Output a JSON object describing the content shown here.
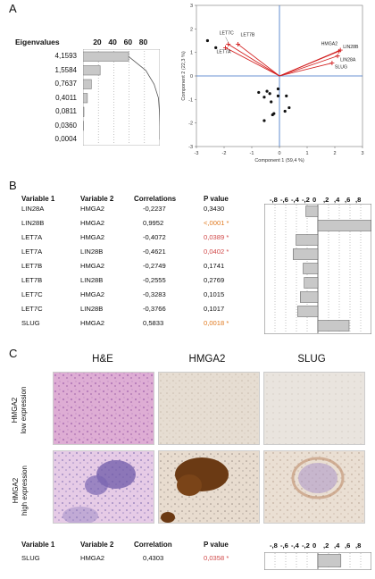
{
  "panels": {
    "a": "A",
    "b": "B",
    "c": "C"
  },
  "eigen": {
    "header": "Eigenvalues",
    "ticks": [
      "20",
      "40",
      "60",
      "80"
    ],
    "values": [
      "4,1593",
      "1,5584",
      "0,7637",
      "0,4011",
      "0,0811",
      "0,0360",
      "0,0004"
    ],
    "percent_bars": [
      59.4,
      22.3,
      10.9,
      5.7,
      1.2,
      0.5,
      0.0
    ],
    "cumulative": [
      59.4,
      81.7,
      92.6,
      98.3,
      99.5,
      100,
      100
    ]
  },
  "pca": {
    "xlabel": "Component 1 (59,4 %)",
    "ylabel": "Component 2 (22,3 %)",
    "xticks": [
      "-3",
      "-2",
      "-1",
      "0",
      "1",
      "2",
      "3"
    ],
    "yticks": [
      "3",
      "2",
      "1",
      "0",
      "-1",
      "-2",
      "-3"
    ],
    "xlim": [
      -3,
      3
    ],
    "ylim": [
      -3,
      3
    ],
    "loadings": [
      {
        "name": "LET7C",
        "x": -1.85,
        "y": 1.35
      },
      {
        "name": "LET7B",
        "x": -1.5,
        "y": 1.35
      },
      {
        "name": "LET7A",
        "x": -1.95,
        "y": 1.2
      },
      {
        "name": "HMGA2",
        "x": 2.15,
        "y": 1.05
      },
      {
        "name": "LIN28B",
        "x": 2.2,
        "y": 1.1
      },
      {
        "name": "LIN28A",
        "x": 2.1,
        "y": 0.85
      },
      {
        "name": "SLUG",
        "x": 1.9,
        "y": 0.55
      }
    ],
    "scores": [
      [
        -2.6,
        1.5
      ],
      [
        -2.3,
        1.2
      ],
      [
        -0.05,
        -0.55
      ],
      [
        -0.75,
        -0.7
      ],
      [
        -0.45,
        -0.65
      ],
      [
        -0.35,
        -0.75
      ],
      [
        -0.55,
        -0.9
      ],
      [
        -0.3,
        -1.1
      ],
      [
        -0.05,
        -0.85
      ],
      [
        0.25,
        -0.85
      ],
      [
        0.35,
        -1.35
      ],
      [
        0.2,
        -1.5
      ],
      [
        -0.2,
        -1.6
      ],
      [
        -0.25,
        -1.65
      ],
      [
        -0.55,
        -1.9
      ]
    ]
  },
  "table_b": {
    "headers": [
      "Variable 1",
      "Variable 2",
      "Correlations",
      "P value"
    ],
    "axis_ticks": [
      "-,8",
      "-,6",
      "-,4",
      "-,2",
      "0",
      ",2",
      ",4",
      ",6",
      ",8"
    ],
    "rows": [
      {
        "v1": "LIN28A",
        "v2": "HMGA2",
        "corr": "-0,2237",
        "p": "0,3430",
        "value": -0.2237,
        "sig": ""
      },
      {
        "v1": "LIN28B",
        "v2": "HMGA2",
        "corr": "0,9952",
        "p": "<,0001 *",
        "value": 0.9952,
        "sig": "orange"
      },
      {
        "v1": "LET7A",
        "v2": "HMGA2",
        "corr": "-0,4072",
        "p": "0,0389 *",
        "value": -0.4072,
        "sig": "red"
      },
      {
        "v1": "LET7A",
        "v2": "LIN28B",
        "corr": "-0,4621",
        "p": "0,0402 *",
        "value": -0.4621,
        "sig": "red"
      },
      {
        "v1": "LET7B",
        "v2": "HMGA2",
        "corr": "-0,2749",
        "p": "0,1741",
        "value": -0.2749,
        "sig": ""
      },
      {
        "v1": "LET7B",
        "v2": "LIN28B",
        "corr": "-0,2555",
        "p": "0,2769",
        "value": -0.2555,
        "sig": ""
      },
      {
        "v1": "LET7C",
        "v2": "HMGA2",
        "corr": "-0,3283",
        "p": "0,1015",
        "value": -0.3283,
        "sig": ""
      },
      {
        "v1": "LET7C",
        "v2": "LIN28B",
        "corr": "-0,3766",
        "p": "0,1017",
        "value": -0.3766,
        "sig": ""
      },
      {
        "v1": "SLUG",
        "v2": "HMGA2",
        "corr": "0,5833",
        "p": "0,0018 *",
        "value": 0.5833,
        "sig": "orange"
      }
    ]
  },
  "histology": {
    "columns": [
      "H&E",
      "HMGA2",
      "SLUG"
    ],
    "row_labels": [
      {
        "line1": "HMGA2",
        "line2": "low expression"
      },
      {
        "line1": "HMGA2",
        "line2": "high expression"
      }
    ]
  },
  "table_c": {
    "headers": [
      "Variable 1",
      "Variable 2",
      "Correlation",
      "P value"
    ],
    "axis_ticks": [
      "-,8",
      "-,6",
      "-,4",
      "-,2",
      "0",
      ",2",
      ",4",
      ",6",
      ",8"
    ],
    "rows": [
      {
        "v1": "SLUG",
        "v2": "HMGA2",
        "corr": "0,4303",
        "p": "0,0358 *",
        "value": 0.4303,
        "sig": "red"
      }
    ]
  },
  "chart_data": [
    {
      "type": "bar",
      "title": "Eigenvalues",
      "categories": [
        "4,1593",
        "1,5584",
        "0,7637",
        "0,4011",
        "0,0811",
        "0,0360",
        "0,0004"
      ],
      "values": [
        59.4,
        22.3,
        10.9,
        5.7,
        1.2,
        0.5,
        0.0
      ],
      "xlim": [
        0,
        100
      ]
    },
    {
      "type": "scatter",
      "xlabel": "Component 1 (59,4 %)",
      "ylabel": "Component 2 (22,3 %)",
      "xlim": [
        -3,
        3
      ],
      "ylim": [
        -3,
        3
      ]
    },
    {
      "type": "bar",
      "categories": [
        "LIN28A/HMGA2",
        "LIN28B/HMGA2",
        "LET7A/HMGA2",
        "LET7A/LIN28B",
        "LET7B/HMGA2",
        "LET7B/LIN28B",
        "LET7C/HMGA2",
        "LET7C/LIN28B",
        "SLUG/HMGA2"
      ],
      "values": [
        -0.2237,
        0.9952,
        -0.4072,
        -0.4621,
        -0.2749,
        -0.2555,
        -0.3283,
        -0.3766,
        0.5833
      ],
      "xlim": [
        -1,
        1
      ]
    },
    {
      "type": "bar",
      "categories": [
        "SLUG/HMGA2"
      ],
      "values": [
        0.4303
      ],
      "xlim": [
        -1,
        1
      ]
    }
  ]
}
